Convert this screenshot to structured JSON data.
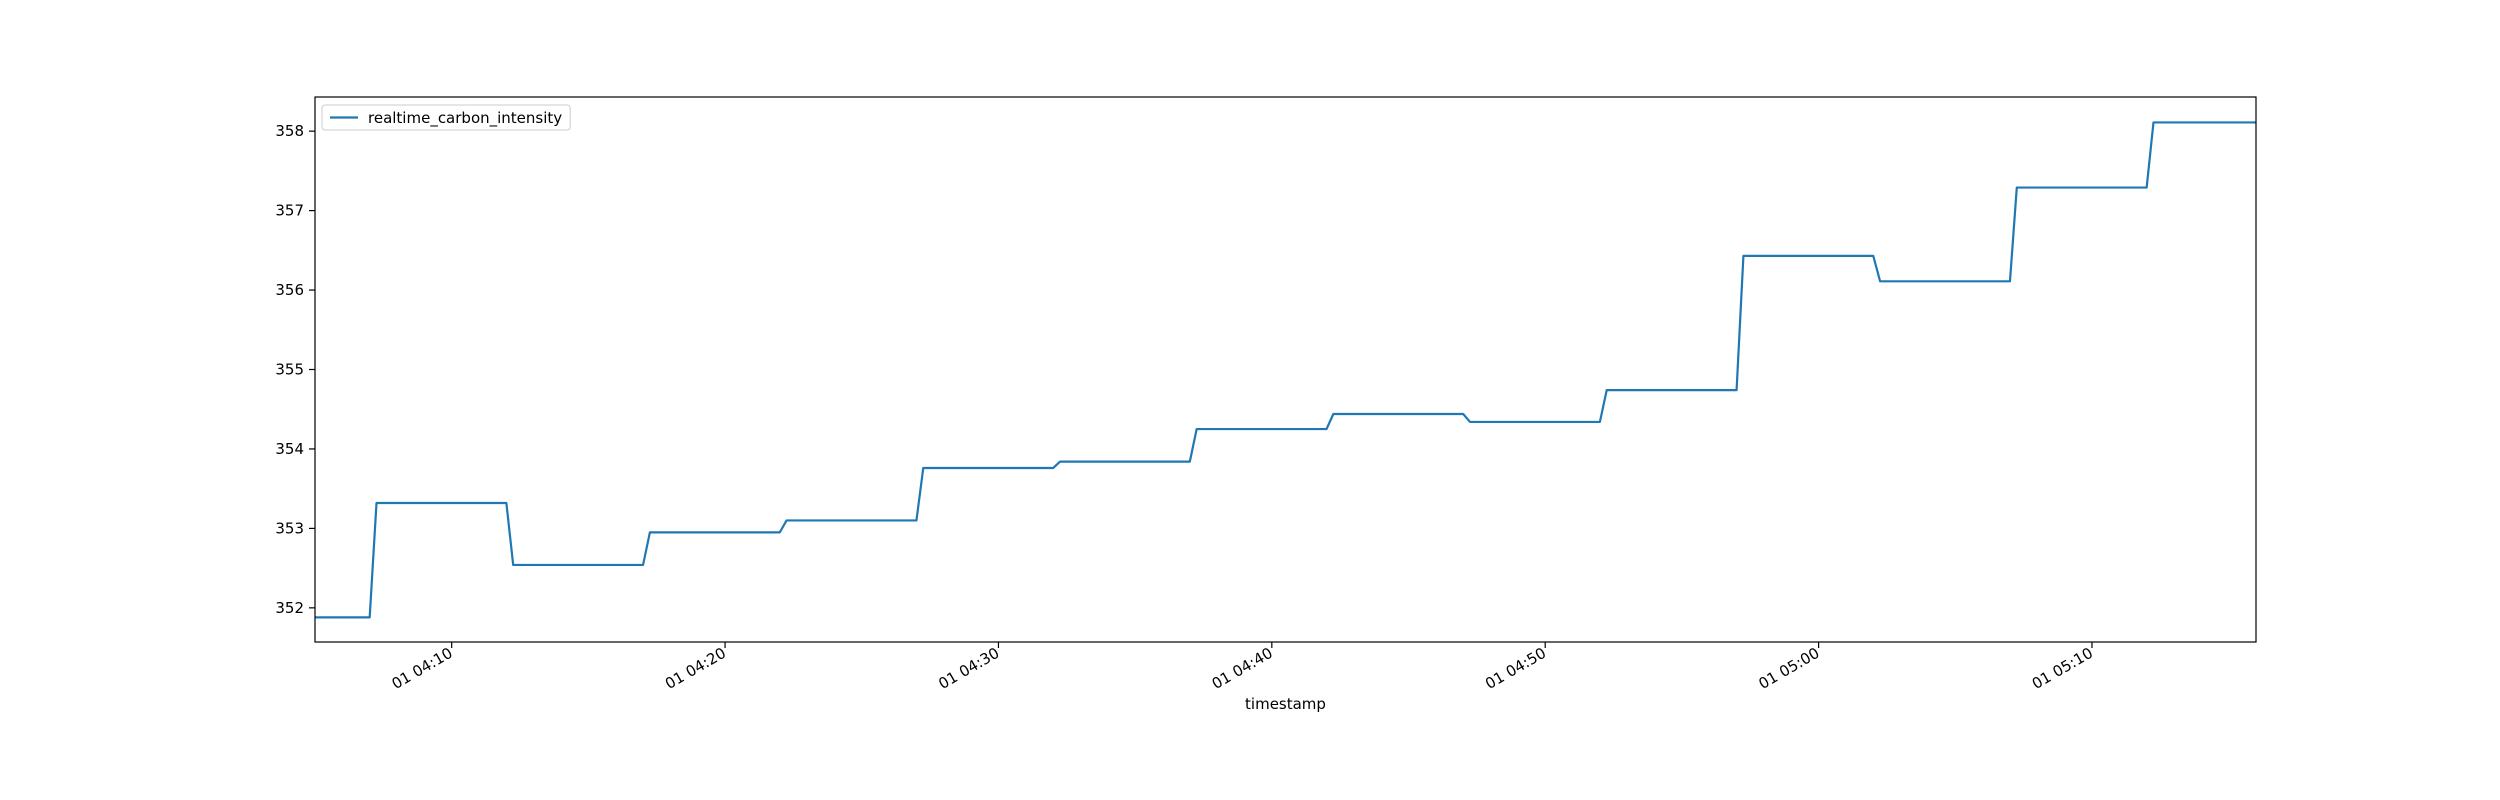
{
  "chart_data": {
    "type": "line",
    "xlabel": "timestamp",
    "ylabel": "",
    "legend_position": "top-left",
    "grid": false,
    "xlim": [
      "01 04:05",
      "01 05:16"
    ],
    "ylim": [
      351.57,
      358.43
    ],
    "x_ticks": [
      {
        "value": "01 04:10",
        "label": "01 04:10"
      },
      {
        "value": "01 04:20",
        "label": "01 04:20"
      },
      {
        "value": "01 04:30",
        "label": "01 04:30"
      },
      {
        "value": "01 04:40",
        "label": "01 04:40"
      },
      {
        "value": "01 04:50",
        "label": "01 04:50"
      },
      {
        "value": "01 05:00",
        "label": "01 05:00"
      },
      {
        "value": "01 05:10",
        "label": "01 05:10"
      }
    ],
    "y_ticks": [
      352,
      353,
      354,
      355,
      356,
      357,
      358
    ],
    "series": [
      {
        "name": "realtime_carbon_intensity",
        "color": "#1f77b4",
        "x": [
          "01 04:05",
          "01 04:07",
          "01 04:07:15",
          "01 04:12",
          "01 04:12:15",
          "01 04:17",
          "01 04:17:15",
          "01 04:22",
          "01 04:22:15",
          "01 04:27",
          "01 04:27:15",
          "01 04:32",
          "01 04:32:15",
          "01 04:37",
          "01 04:37:15",
          "01 04:42",
          "01 04:42:15",
          "01 04:47",
          "01 04:47:15",
          "01 04:52",
          "01 04:52:15",
          "01 04:57",
          "01 04:57:15",
          "01 05:02",
          "01 05:02:15",
          "01 05:07",
          "01 05:07:15",
          "01 05:12",
          "01 05:12:15",
          "01 05:16"
        ],
        "y": [
          351.88,
          351.88,
          353.32,
          353.32,
          352.54,
          352.54,
          352.95,
          352.95,
          353.1,
          353.1,
          353.76,
          353.76,
          353.84,
          353.84,
          354.25,
          354.25,
          354.44,
          354.44,
          354.34,
          354.34,
          354.74,
          354.74,
          356.43,
          356.43,
          356.11,
          356.11,
          357.29,
          357.29,
          358.11,
          358.11
        ]
      }
    ]
  }
}
